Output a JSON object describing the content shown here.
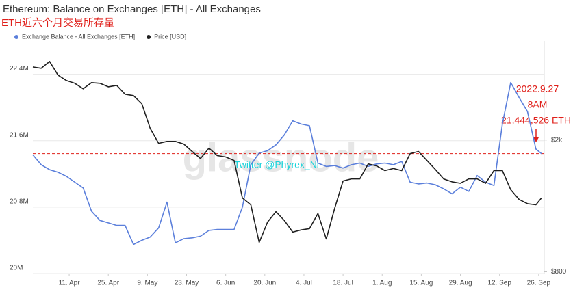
{
  "chart_data": {
    "type": "line",
    "title": "Ethereum: Balance on Exchanges [ETH] - All Exchanges",
    "subtitle": "ETH近六个月交易所存量",
    "watermark": "glassnode",
    "credit": "Twitter @Phyrex_Ni",
    "x": [
      "29. Mar",
      "1. Apr",
      "4. Apr",
      "7. Apr",
      "10. Apr",
      "13. Apr",
      "16. Apr",
      "19. Apr",
      "22. Apr",
      "25. Apr",
      "28. Apr",
      "1. May",
      "4. May",
      "7. May",
      "10. May",
      "13. May",
      "16. May",
      "19. May",
      "22. May",
      "25. May",
      "28. May",
      "31. May",
      "3. Jun",
      "6. Jun",
      "9. Jun",
      "12. Jun",
      "15. Jun",
      "18. Jun",
      "21. Jun",
      "24. Jun",
      "27. Jun",
      "30. Jun",
      "3. Jul",
      "6. Jul",
      "9. Jul",
      "12. Jul",
      "15. Jul",
      "18. Jul",
      "21. Jul",
      "24. Jul",
      "27. Jul",
      "30. Jul",
      "2. Aug",
      "5. Aug",
      "8. Aug",
      "11. Aug",
      "14. Aug",
      "17. Aug",
      "20. Aug",
      "23. Aug",
      "26. Aug",
      "29. Aug",
      "1. Sep",
      "4. Sep",
      "7. Sep",
      "10. Sep",
      "13. Sep",
      "16. Sep",
      "19. Sep",
      "22. Sep",
      "25. Sep",
      "27. Sep"
    ],
    "series": [
      {
        "name": "Exchange Balance - All Exchanges [ETH]",
        "color": "#5b7fdb",
        "axis": "y",
        "values": [
          21430000,
          21310000,
          21250000,
          21220000,
          21170000,
          21100000,
          21030000,
          20750000,
          20640000,
          20610000,
          20580000,
          20580000,
          20350000,
          20400000,
          20440000,
          20550000,
          20860000,
          20370000,
          20420000,
          20430000,
          20450000,
          20520000,
          20530000,
          20530000,
          20530000,
          20800000,
          21310000,
          21450000,
          21480000,
          21550000,
          21670000,
          21840000,
          21800000,
          21780000,
          21330000,
          21290000,
          21300000,
          21270000,
          21310000,
          21330000,
          21290000,
          21320000,
          21330000,
          21310000,
          21350000,
          21100000,
          21080000,
          21090000,
          21070000,
          21020000,
          20960000,
          21040000,
          20990000,
          21180000,
          21100000,
          21060000,
          21800000,
          22300000,
          22120000,
          21950000,
          21500000,
          21444526
        ]
      },
      {
        "name": "Price [USD]",
        "color": "#1f1f1f",
        "axis": "y2",
        "values": [
          3324,
          3294,
          3453,
          3141,
          3023,
          2966,
          2856,
          2980,
          2966,
          2895,
          2924,
          2749,
          2723,
          2573,
          2168,
          1954,
          1980,
          1980,
          1945,
          1846,
          1759,
          1890,
          1794,
          1777,
          1735,
          1336,
          1274,
          981,
          1131,
          1215,
          1142,
          1054,
          1070,
          1080,
          1200,
          1005,
          1244,
          1504,
          1526,
          1526,
          1693,
          1670,
          1616,
          1640,
          1616,
          1819,
          1846,
          1735,
          1630,
          1526,
          1495,
          1480,
          1526,
          1526,
          1480,
          1616,
          1616,
          1415,
          1322,
          1284,
          1274,
          1336
        ]
      }
    ],
    "xlim": [
      "29. Mar",
      "28. Sep"
    ],
    "xticks": [
      "11. Apr",
      "25. Apr",
      "9. May",
      "23. May",
      "6. Jun",
      "20. Jun",
      "4. Jul",
      "18. Jul",
      "1. Aug",
      "15. Aug",
      "29. Aug",
      "12. Sep",
      "26. Sep"
    ],
    "ylim": [
      20000000,
      22800000
    ],
    "yticks": [
      {
        "value": 20000000,
        "label": "20M"
      },
      {
        "value": 20800000,
        "label": "20.8M"
      },
      {
        "value": 21600000,
        "label": "21.6M"
      },
      {
        "value": 22400000,
        "label": "22.4M"
      }
    ],
    "y2lim": [
      790,
      3980
    ],
    "y2log": true,
    "y2ticks": [
      {
        "value": 800,
        "label": "$800"
      },
      {
        "value": 2000,
        "label": "$2k"
      }
    ],
    "grid": true,
    "annotation": {
      "lines": [
        "2022.9.27",
        "8AM"
      ],
      "value": 21444526,
      "value_label": "21,444,526 ETH",
      "color": "#e0201b"
    }
  }
}
